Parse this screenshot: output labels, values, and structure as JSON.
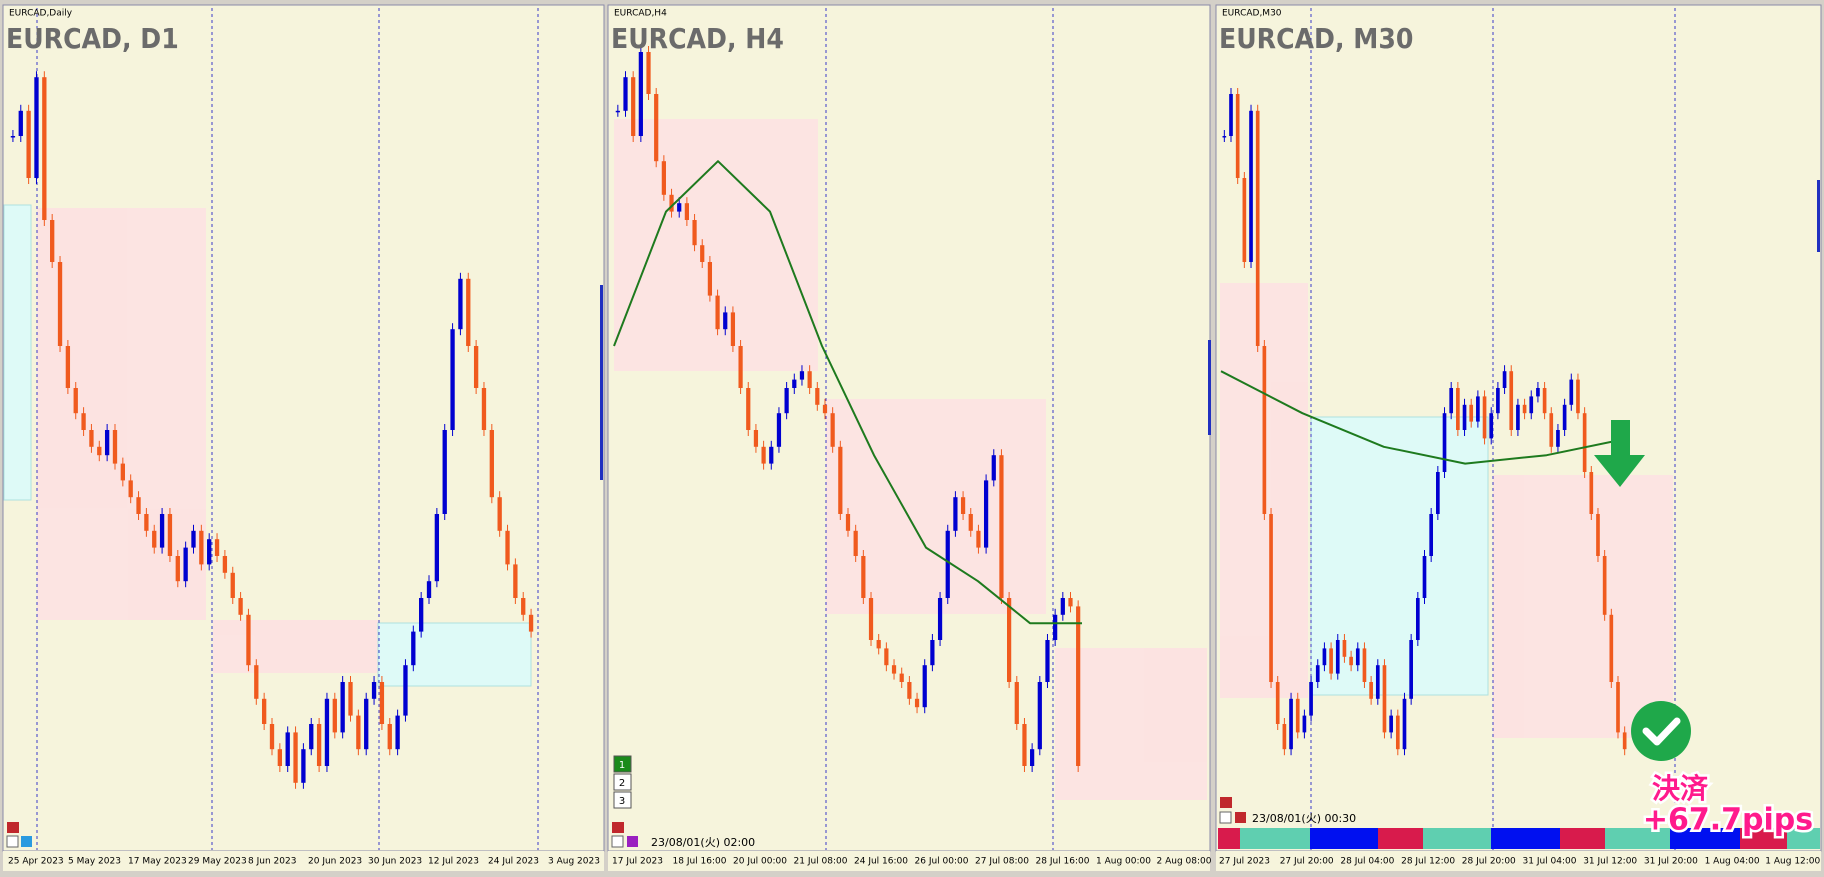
{
  "panes": [
    {
      "label": "EURCAD,Daily",
      "title": "EURCAD, D1",
      "time_labels": [
        "25 Apr 2023",
        "5 May 2023",
        "17 May 2023",
        "29 May 2023",
        "8 Jun 2023",
        "20 Jun 2023",
        "30 Jun 2023",
        "12 Jul 2023",
        "24 Jul 2023",
        "3 Aug 2023"
      ],
      "ylim": [
        0,
        100
      ],
      "closes": [
        85,
        88,
        80,
        92,
        75,
        70,
        60,
        55,
        52,
        50,
        48,
        47,
        50,
        46,
        44,
        42,
        40,
        38,
        36,
        40,
        35,
        32,
        36,
        38,
        34,
        37,
        35,
        33,
        30,
        28,
        22,
        18,
        15,
        12,
        10,
        14,
        8,
        12,
        15,
        10,
        18,
        14,
        20,
        16,
        12,
        18,
        20,
        15,
        12,
        16,
        22,
        26,
        30,
        32,
        40,
        50,
        62,
        68,
        60,
        55,
        50,
        42,
        38,
        34,
        30,
        28,
        26
      ]
    },
    {
      "label": "EURCAD,H4",
      "title": "EURCAD, H4",
      "time_labels": [
        "17 Jul 2023",
        "18 Jul 16:00",
        "20 Jul 00:00",
        "21 Jul 08:00",
        "24 Jul 16:00",
        "26 Jul 00:00",
        "27 Jul 08:00",
        "28 Jul 16:00",
        "1 Aug 00:00",
        "2 Aug 08:00"
      ],
      "ylim": [
        0,
        100
      ],
      "closes": [
        88,
        92,
        85,
        95,
        90,
        82,
        78,
        76,
        77,
        75,
        72,
        70,
        66,
        62,
        64,
        60,
        55,
        50,
        48,
        46,
        48,
        52,
        55,
        56,
        57,
        55,
        53,
        52,
        48,
        40,
        38,
        35,
        30,
        25,
        24,
        22,
        21,
        20,
        18,
        17,
        22,
        25,
        30,
        38,
        42,
        40,
        38,
        36,
        44,
        47,
        30,
        20,
        15,
        10,
        12,
        20,
        25,
        28,
        30,
        29,
        10
      ],
      "ma": [
        60,
        76,
        82,
        76,
        60,
        47,
        36,
        32,
        27,
        27
      ]
    },
    {
      "label": "EURCAD,M30",
      "title": "EURCAD, M30",
      "time_labels": [
        "27 Jul 2023",
        "27 Jul 20:00",
        "28 Jul 04:00",
        "28 Jul 12:00",
        "28 Jul 20:00",
        "31 Jul 04:00",
        "31 Jul 12:00",
        "31 Jul 20:00",
        "1 Aug 04:00",
        "1 Aug 12:00"
      ],
      "ylim": [
        0,
        100
      ],
      "closes": [
        85,
        90,
        80,
        70,
        88,
        60,
        40,
        20,
        15,
        12,
        18,
        14,
        16,
        20,
        22,
        24,
        21,
        25,
        23,
        22,
        24,
        20,
        18,
        22,
        14,
        16,
        12,
        18,
        25,
        30,
        35,
        40,
        45,
        52,
        55,
        50,
        53,
        51,
        54,
        49,
        52,
        55,
        57,
        50,
        53,
        52,
        54,
        55,
        52,
        48,
        50,
        53,
        56,
        52,
        45,
        40,
        35,
        28,
        20,
        14,
        12
      ],
      "ma": [
        57,
        52,
        48,
        46,
        47,
        49
      ]
    }
  ],
  "up_color": "#0000d0",
  "down_color": "#f05a1e",
  "ma_color": "#1e7a1e",
  "timestamps": [
    "23/08/01(火) 02:00",
    "23/08/01(火) 00:30"
  ],
  "buttons": [
    "1",
    "2",
    "3"
  ],
  "annotation": {
    "action": "決済",
    "result": "+67.7pips"
  }
}
